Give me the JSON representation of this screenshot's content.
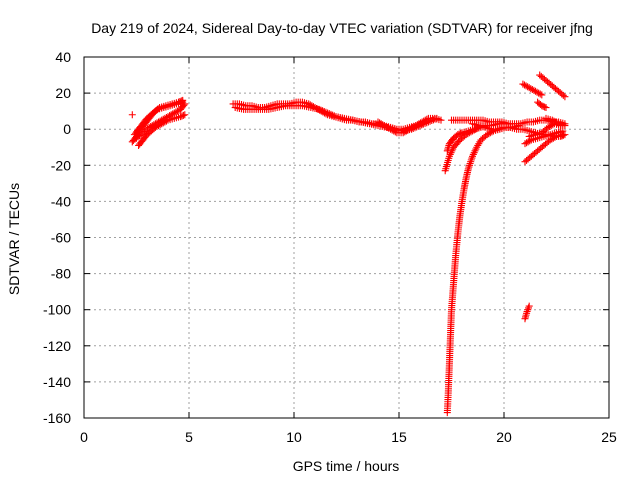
{
  "chart_data": {
    "type": "scatter",
    "title": "Day 219 of 2024, Sidereal Day-to-day VTEC variation (SDTVAR) for receiver jfng",
    "xlabel": "GPS time / hours",
    "ylabel": "SDTVAR / TECUs",
    "xlim": [
      0,
      25
    ],
    "ylim": [
      -160,
      40
    ],
    "xticks": [
      0,
      5,
      10,
      15,
      20,
      25
    ],
    "yticks": [
      -160,
      -140,
      -120,
      -100,
      -80,
      -60,
      -40,
      -20,
      0,
      20,
      40
    ],
    "grid": true,
    "marker": "+",
    "color": "#ff0000",
    "series": [
      {
        "name": "early-arcs",
        "x": [
          2.3,
          2.5,
          2.7,
          2.9,
          3.1,
          3.3,
          3.5,
          3.8,
          4.1,
          4.4,
          4.7
        ],
        "y": [
          -7,
          -4,
          0,
          3,
          6,
          9,
          11,
          12,
          13,
          14,
          15
        ]
      },
      {
        "name": "early-arcs-2",
        "x": [
          2.4,
          2.6,
          2.8,
          3.0,
          3.2,
          3.4,
          3.6,
          3.9,
          4.2,
          4.5,
          4.7
        ],
        "y": [
          -3,
          0,
          3,
          6,
          8,
          10,
          12,
          13,
          14,
          15,
          16
        ]
      },
      {
        "name": "early-arcs-3",
        "x": [
          2.6,
          2.8,
          3.0,
          3.2,
          3.4,
          3.7,
          4.0,
          4.3,
          4.6,
          4.8
        ],
        "y": [
          -9,
          -6,
          -3,
          -1,
          1,
          3,
          5,
          6,
          7,
          8
        ]
      },
      {
        "name": "early-arcs-4",
        "x": [
          2.5,
          2.8,
          3.1,
          3.4,
          3.7,
          4.0,
          4.3,
          4.6,
          4.8
        ],
        "y": [
          -5,
          -2,
          1,
          3,
          5,
          7,
          9,
          11,
          14
        ]
      },
      {
        "name": "early-point",
        "x": [
          2.3
        ],
        "y": [
          8
        ]
      },
      {
        "name": "midday",
        "x": [
          7.1,
          7.4,
          7.7,
          8.0,
          8.3,
          8.6,
          8.9,
          9.2,
          9.5,
          9.8,
          10.1,
          10.4,
          10.7,
          11.0,
          11.3,
          11.6,
          11.9,
          12.2,
          12.5,
          12.8,
          13.1,
          13.4,
          13.7,
          14.0,
          14.3,
          14.6,
          14.9,
          15.2,
          15.5,
          15.8,
          16.1
        ],
        "y": [
          14,
          14,
          13,
          13,
          12,
          12,
          13,
          14,
          14,
          14,
          15,
          15,
          14,
          12,
          10,
          8,
          7,
          6,
          5,
          5,
          4,
          4,
          3,
          3,
          2,
          1,
          0,
          0,
          1,
          2,
          3
        ]
      },
      {
        "name": "midday-2",
        "x": [
          7.2,
          7.6,
          8.0,
          8.4,
          8.8,
          9.2,
          9.6,
          10.0,
          10.4,
          10.8,
          11.2,
          11.6,
          12.0,
          12.4,
          12.8,
          13.2,
          13.6,
          14.0,
          14.4,
          14.8,
          15.2,
          15.6,
          16.0,
          16.4,
          16.8
        ],
        "y": [
          12,
          11,
          11,
          11,
          11,
          12,
          13,
          13,
          13,
          12,
          11,
          9,
          7,
          6,
          5,
          4,
          3,
          2,
          1,
          0,
          -1,
          0,
          2,
          4,
          6
        ]
      },
      {
        "name": "midday-3",
        "x": [
          14.0,
          14.3,
          14.6,
          14.9,
          15.2,
          15.5,
          15.8,
          16.1,
          16.4,
          16.7,
          17.0
        ],
        "y": [
          4,
          2,
          0,
          -2,
          -2,
          0,
          2,
          4,
          6,
          6,
          5
        ]
      },
      {
        "name": "afternoon-flat",
        "x": [
          17.5,
          17.8,
          18.1,
          18.4,
          18.7,
          19.0,
          19.3,
          19.6,
          19.9,
          20.2,
          20.5,
          20.8,
          21.1,
          21.4,
          21.7,
          22.0,
          22.3,
          22.6,
          22.9
        ],
        "y": [
          5,
          5,
          5,
          5,
          5,
          5,
          4,
          4,
          4,
          3,
          3,
          3,
          4,
          4,
          5,
          5,
          4,
          4,
          3
        ]
      },
      {
        "name": "afternoon-low",
        "x": [
          18.5,
          18.8,
          19.1,
          19.4,
          19.7,
          20.0,
          20.3,
          20.6,
          20.9,
          21.2,
          21.5,
          21.8,
          22.1,
          22.4,
          22.7,
          22.9
        ],
        "y": [
          3,
          2,
          1,
          0,
          0,
          1,
          1,
          0,
          0,
          -1,
          -2,
          -3,
          -3,
          -4,
          -4,
          -3
        ]
      },
      {
        "name": "afternoon-neg",
        "x": [
          21.0,
          21.3,
          21.6,
          21.9,
          22.2,
          22.5,
          22.8
        ],
        "y": [
          -18,
          -15,
          -12,
          -9,
          -6,
          -4,
          -3
        ]
      },
      {
        "name": "afternoon-neg-2",
        "x": [
          21.0,
          21.3,
          21.6,
          21.9,
          22.2,
          22.5,
          22.8
        ],
        "y": [
          -8,
          -6,
          -5,
          -4,
          -3,
          -2,
          -1
        ]
      },
      {
        "name": "afternoon-neg-3",
        "x": [
          21.2,
          21.5,
          21.8,
          22.1,
          22.4,
          22.7
        ],
        "y": [
          -4,
          -3,
          -2,
          1,
          3,
          2
        ]
      },
      {
        "name": "late-upper",
        "x": [
          20.9,
          21.2,
          21.5,
          21.8
        ],
        "y": [
          25,
          23,
          21,
          19
        ]
      },
      {
        "name": "late-upper-2",
        "x": [
          21.7,
          22.0,
          22.3,
          22.6,
          22.9
        ],
        "y": [
          30,
          27,
          24,
          21,
          18
        ]
      },
      {
        "name": "late-upper-3",
        "x": [
          21.6,
          21.8,
          22.0
        ],
        "y": [
          15,
          13,
          12
        ]
      },
      {
        "name": "late-upper-4",
        "x": [
          22.0,
          22.3,
          22.6,
          22.9
        ],
        "y": [
          6,
          5,
          3,
          2
        ]
      },
      {
        "name": "dip",
        "x": [
          17.3,
          17.35,
          17.4,
          17.45,
          17.5,
          17.6,
          17.7,
          17.8,
          17.9,
          18.0,
          18.1,
          18.2,
          18.3,
          18.5,
          18.7,
          18.9,
          19.2,
          19.5,
          19.8,
          20.1,
          20.4,
          20.7
        ],
        "y": [
          -157,
          -145,
          -130,
          -115,
          -100,
          -85,
          -70,
          -58,
          -48,
          -40,
          -33,
          -27,
          -22,
          -15,
          -10,
          -6,
          -3,
          -1,
          0,
          1,
          1,
          2
        ]
      },
      {
        "name": "dip-rise",
        "x": [
          17.2,
          17.4,
          17.6,
          17.9,
          18.2,
          18.5,
          18.8,
          19.1,
          19.4,
          19.7,
          20.0
        ],
        "y": [
          -23,
          -15,
          -10,
          -6,
          -3,
          -1,
          1,
          2,
          2,
          3,
          3
        ]
      },
      {
        "name": "dip-side",
        "x": [
          17.3,
          17.4,
          17.6,
          17.8,
          18.0,
          18.3,
          18.6,
          18.9,
          19.2
        ],
        "y": [
          -12,
          -8,
          -5,
          -3,
          -2,
          -1,
          0,
          1,
          2
        ]
      },
      {
        "name": "outlier",
        "x": [
          21.0,
          21.1,
          21.2
        ],
        "y": [
          -105,
          -101,
          -98
        ]
      }
    ]
  }
}
